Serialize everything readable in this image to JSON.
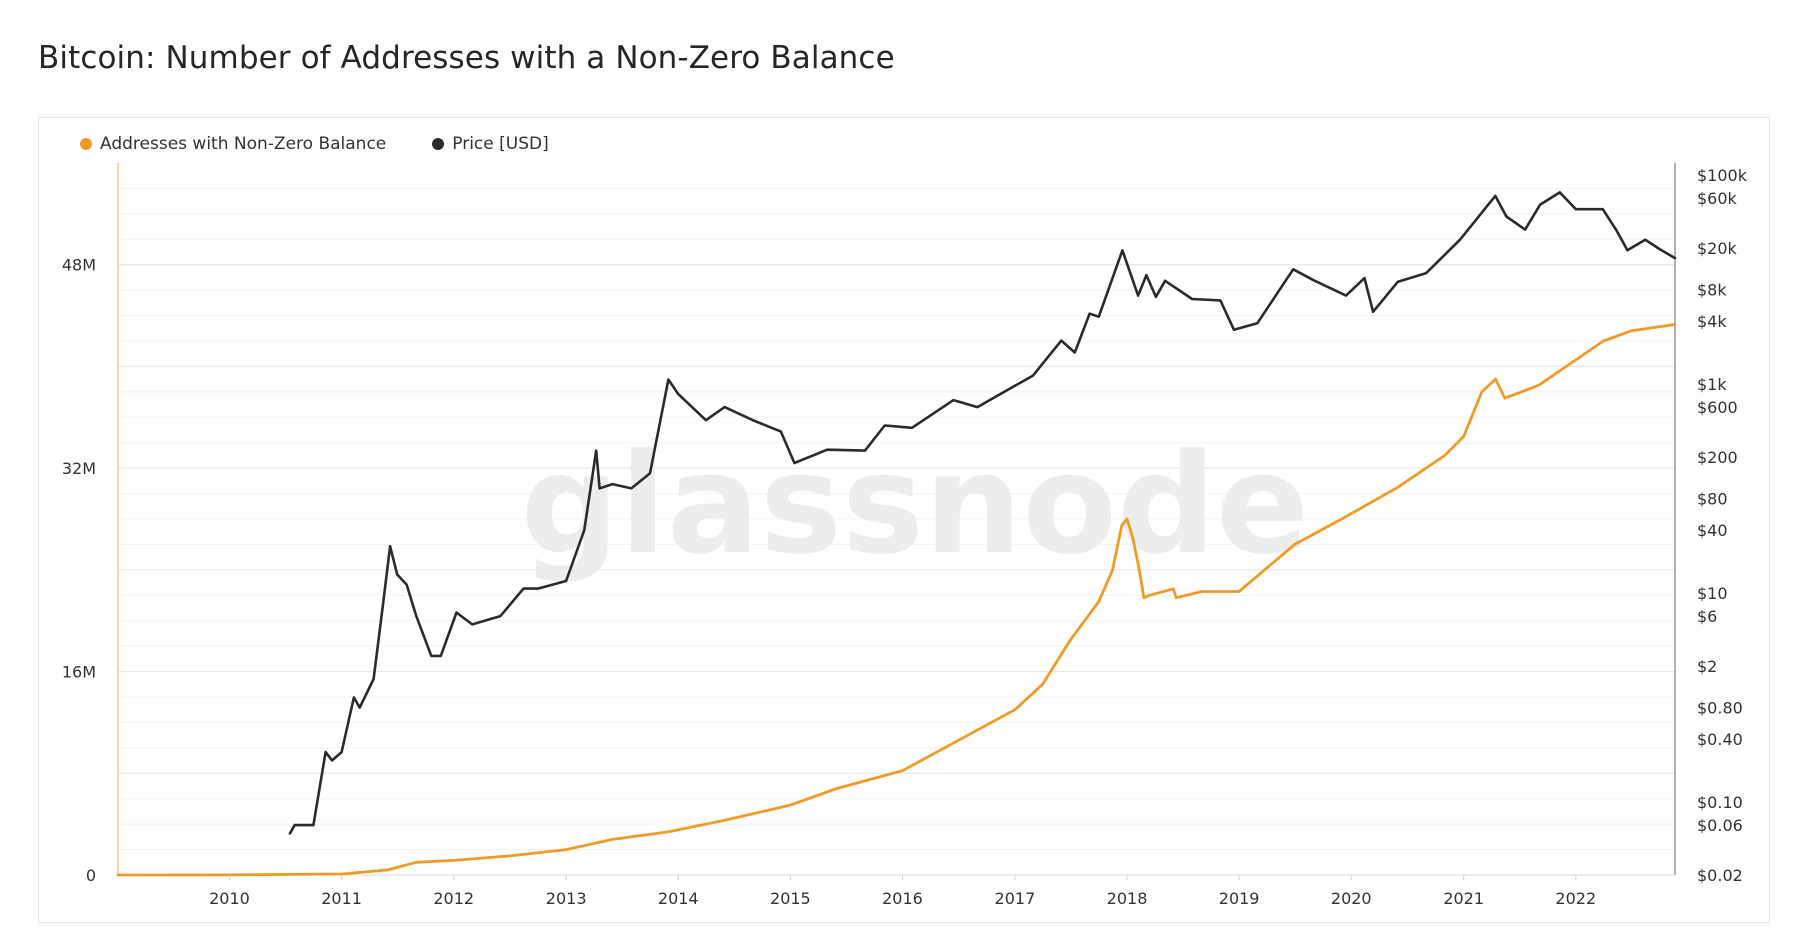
{
  "title": "Bitcoin: Number of Addresses with a Non-Zero Balance",
  "watermark": "glassnode",
  "legend": [
    {
      "label": "Addresses with Non-Zero Balance",
      "color": "#f09b27"
    },
    {
      "label": "Price [USD]",
      "color": "#2b2b2b"
    }
  ],
  "chart_data": {
    "type": "line",
    "title": "Bitcoin: Number of Addresses with a Non-Zero Balance",
    "xlabel": "",
    "ylabel": "",
    "x_ticks": [
      "2010",
      "2011",
      "2012",
      "2013",
      "2014",
      "2015",
      "2016",
      "2017",
      "2018",
      "2019",
      "2020",
      "2021",
      "2022"
    ],
    "xlim": [
      "2009-01-03",
      "2022-11-20"
    ],
    "y_left": {
      "ticks": [
        {
          "v": 0,
          "label": "0"
        },
        {
          "v": 16000000,
          "label": "16M"
        },
        {
          "v": 32000000,
          "label": "32M"
        },
        {
          "v": 48000000,
          "label": "48M"
        }
      ],
      "ylim": [
        0,
        56000000
      ]
    },
    "y_right": {
      "scale": "log",
      "ticks": [
        {
          "v": 100000,
          "label": "$100k"
        },
        {
          "v": 60000,
          "label": "$60k"
        },
        {
          "v": 20000,
          "label": "$20k"
        },
        {
          "v": 8000,
          "label": "$8k"
        },
        {
          "v": 4000,
          "label": "$4k"
        },
        {
          "v": 1000,
          "label": "$1k"
        },
        {
          "v": 600,
          "label": "$600"
        },
        {
          "v": 200,
          "label": "$200"
        },
        {
          "v": 80,
          "label": "$80"
        },
        {
          "v": 40,
          "label": "$40"
        },
        {
          "v": 10,
          "label": "$10"
        },
        {
          "v": 6,
          "label": "$6"
        },
        {
          "v": 2,
          "label": "$2"
        },
        {
          "v": 0.8,
          "label": "$0.80"
        },
        {
          "v": 0.4,
          "label": "$0.40"
        },
        {
          "v": 0.1,
          "label": "$0.10"
        },
        {
          "v": 0.06,
          "label": "$0.06"
        },
        {
          "v": 0.02,
          "label": "$0.02"
        }
      ],
      "ylim": [
        0.02,
        130000
      ]
    },
    "grid": true,
    "legend_position": "top-left",
    "series": [
      {
        "name": "Addresses with Non-Zero Balance",
        "axis": "left",
        "color": "#f09b27",
        "points": [
          [
            "2009-01-03",
            0
          ],
          [
            "2010-01-01",
            10000
          ],
          [
            "2011-01-01",
            80000
          ],
          [
            "2011-06-01",
            400000
          ],
          [
            "2011-07-01",
            600000
          ],
          [
            "2011-09-01",
            1000000
          ],
          [
            "2012-01-01",
            1150000
          ],
          [
            "2012-07-01",
            1500000
          ],
          [
            "2013-01-01",
            2000000
          ],
          [
            "2013-06-01",
            2800000
          ],
          [
            "2013-12-01",
            3400000
          ],
          [
            "2014-06-01",
            4300000
          ],
          [
            "2015-01-01",
            5500000
          ],
          [
            "2015-06-01",
            6800000
          ],
          [
            "2016-01-01",
            8200000
          ],
          [
            "2016-06-01",
            10200000
          ],
          [
            "2017-01-01",
            13000000
          ],
          [
            "2017-04-01",
            15000000
          ],
          [
            "2017-07-01",
            18500000
          ],
          [
            "2017-10-01",
            21500000
          ],
          [
            "2017-11-15",
            24000000
          ],
          [
            "2017-12-15",
            27500000
          ],
          [
            "2018-01-01",
            28000000
          ],
          [
            "2018-01-20",
            26500000
          ],
          [
            "2018-02-10",
            24000000
          ],
          [
            "2018-02-25",
            21800000
          ],
          [
            "2018-03-15",
            22000000
          ],
          [
            "2018-06-01",
            22500000
          ],
          [
            "2018-06-10",
            21800000
          ],
          [
            "2018-09-01",
            22300000
          ],
          [
            "2019-01-01",
            22300000
          ],
          [
            "2019-07-01",
            26000000
          ],
          [
            "2019-12-01",
            28000000
          ],
          [
            "2020-06-01",
            30500000
          ],
          [
            "2020-11-01",
            33000000
          ],
          [
            "2021-01-01",
            34500000
          ],
          [
            "2021-03-01",
            38000000
          ],
          [
            "2021-04-15",
            39000000
          ],
          [
            "2021-05-15",
            37500000
          ],
          [
            "2021-09-01",
            38500000
          ],
          [
            "2021-12-01",
            40000000
          ],
          [
            "2022-04-01",
            42000000
          ],
          [
            "2022-07-01",
            42800000
          ],
          [
            "2022-11-20",
            43300000
          ]
        ]
      },
      {
        "name": "Price [USD]",
        "axis": "right",
        "color": "#2b2b2b",
        "points": [
          [
            "2010-07-17",
            0.05
          ],
          [
            "2010-08-01",
            0.06
          ],
          [
            "2010-10-01",
            0.06
          ],
          [
            "2010-11-10",
            0.3
          ],
          [
            "2010-12-01",
            0.25
          ],
          [
            "2011-01-01",
            0.3
          ],
          [
            "2011-02-10",
            1.0
          ],
          [
            "2011-03-01",
            0.8
          ],
          [
            "2011-04-15",
            1.5
          ],
          [
            "2011-05-15",
            7.5
          ],
          [
            "2011-06-08",
            28
          ],
          [
            "2011-07-01",
            15
          ],
          [
            "2011-08-01",
            12
          ],
          [
            "2011-09-01",
            6
          ],
          [
            "2011-10-20",
            2.5
          ],
          [
            "2011-11-20",
            2.5
          ],
          [
            "2012-01-10",
            6.5
          ],
          [
            "2012-03-01",
            5
          ],
          [
            "2012-06-01",
            6
          ],
          [
            "2012-08-15",
            11
          ],
          [
            "2012-10-01",
            11
          ],
          [
            "2013-01-01",
            13
          ],
          [
            "2013-03-01",
            40
          ],
          [
            "2013-04-09",
            230
          ],
          [
            "2013-04-20",
            100
          ],
          [
            "2013-06-01",
            110
          ],
          [
            "2013-08-01",
            100
          ],
          [
            "2013-10-01",
            140
          ],
          [
            "2013-11-30",
            1100
          ],
          [
            "2014-01-01",
            800
          ],
          [
            "2014-04-01",
            450
          ],
          [
            "2014-06-01",
            600
          ],
          [
            "2014-09-01",
            450
          ],
          [
            "2014-12-01",
            350
          ],
          [
            "2015-01-14",
            175
          ],
          [
            "2015-05-01",
            235
          ],
          [
            "2015-09-01",
            230
          ],
          [
            "2015-11-04",
            400
          ],
          [
            "2016-02-01",
            380
          ],
          [
            "2016-06-15",
            700
          ],
          [
            "2016-09-01",
            600
          ],
          [
            "2017-01-01",
            960
          ],
          [
            "2017-03-01",
            1200
          ],
          [
            "2017-06-01",
            2600
          ],
          [
            "2017-07-15",
            2000
          ],
          [
            "2017-09-01",
            4700
          ],
          [
            "2017-10-01",
            4400
          ],
          [
            "2017-12-17",
            19000
          ],
          [
            "2018-02-06",
            7000
          ],
          [
            "2018-03-05",
            11000
          ],
          [
            "2018-04-05",
            6800
          ],
          [
            "2018-05-05",
            9700
          ],
          [
            "2018-08-01",
            6500
          ],
          [
            "2018-11-01",
            6300
          ],
          [
            "2018-12-15",
            3300
          ],
          [
            "2019-03-01",
            3800
          ],
          [
            "2019-06-26",
            12500
          ],
          [
            "2019-09-01",
            9800
          ],
          [
            "2019-12-15",
            7000
          ],
          [
            "2020-02-13",
            10300
          ],
          [
            "2020-03-12",
            4900
          ],
          [
            "2020-06-01",
            9500
          ],
          [
            "2020-09-01",
            11500
          ],
          [
            "2020-12-20",
            24000
          ],
          [
            "2021-04-14",
            63000
          ],
          [
            "2021-05-20",
            40000
          ],
          [
            "2021-07-20",
            30000
          ],
          [
            "2021-09-07",
            52000
          ],
          [
            "2021-11-10",
            68000
          ],
          [
            "2022-01-01",
            47000
          ],
          [
            "2022-03-30",
            47000
          ],
          [
            "2022-05-15",
            29000
          ],
          [
            "2022-06-18",
            19000
          ],
          [
            "2022-08-15",
            24000
          ],
          [
            "2022-10-01",
            19500
          ],
          [
            "2022-11-20",
            16000
          ]
        ]
      }
    ]
  }
}
